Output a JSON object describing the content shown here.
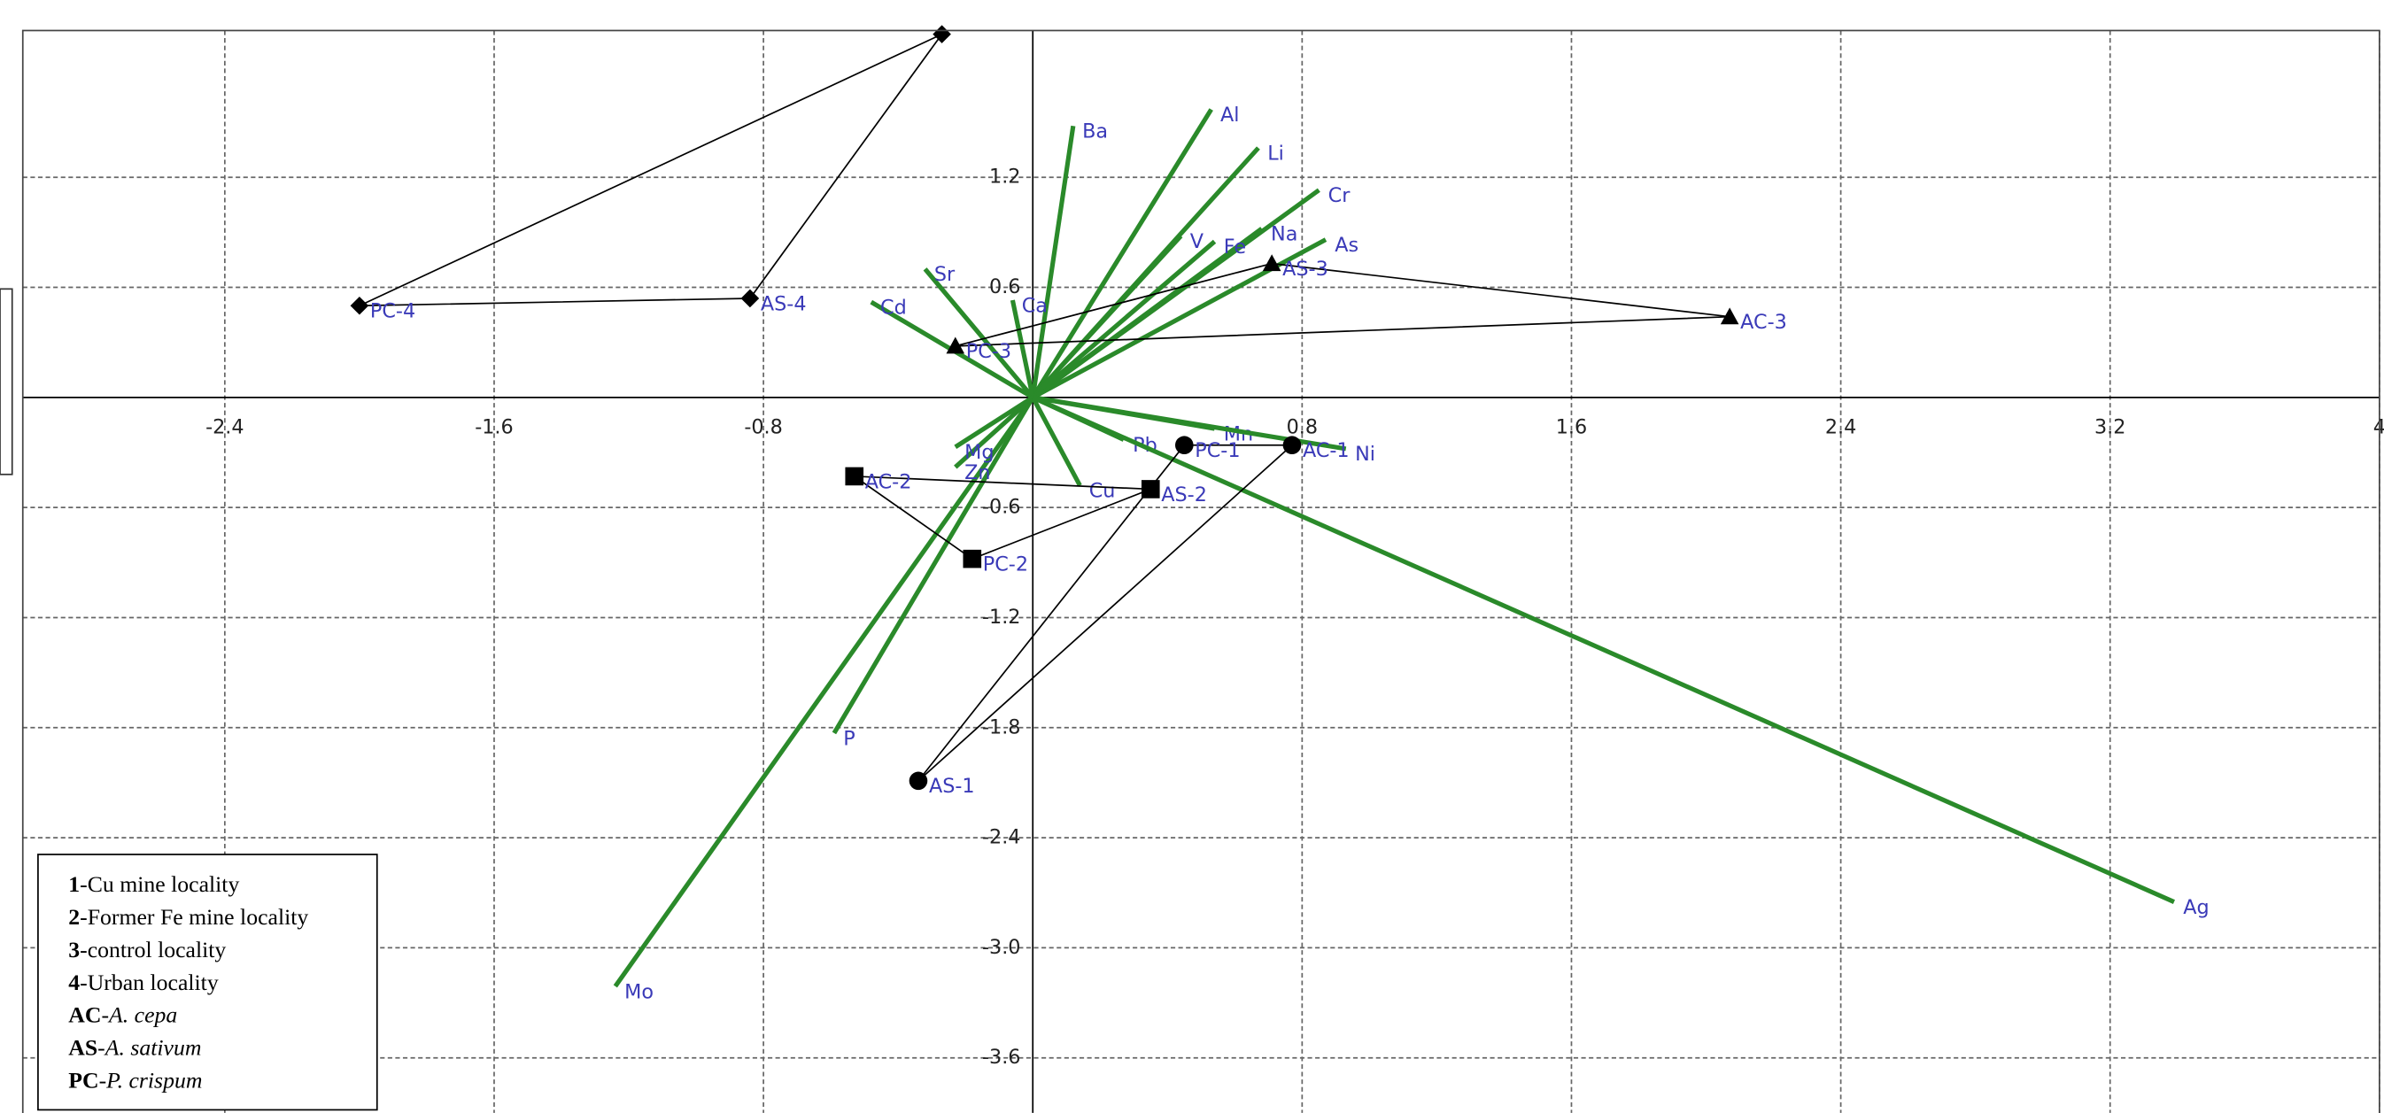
{
  "chart_data": {
    "type": "biplot",
    "xlim": [
      -3.0,
      4.0
    ],
    "ylim": [
      -3.9,
      2.0
    ],
    "xticks": [
      -2.4,
      -1.6,
      -0.8,
      0.8,
      1.6,
      2.4,
      3.2,
      4
    ],
    "yticks": [
      1.2,
      0.6,
      -0.6,
      -1.2,
      -1.8,
      -2.4,
      {
        "value": -3,
        "label": "-3.0"
      },
      -3.6
    ],
    "grid": true,
    "series": [
      {
        "name": "1",
        "marker": "circle",
        "color": "#000000",
        "labels": [
          "AC-1",
          "AS-1",
          "PC-1"
        ],
        "x": [
          0.77,
          -0.34,
          0.45
        ],
        "y": [
          -0.26,
          -2.09,
          -0.26
        ]
      },
      {
        "name": "2",
        "marker": "square",
        "color": "#000000",
        "labels": [
          "AC-2",
          "AS-2",
          "PC-2"
        ],
        "x": [
          -0.53,
          0.35,
          -0.18
        ],
        "y": [
          -0.43,
          -0.5,
          -0.88
        ]
      },
      {
        "name": "3",
        "marker": "triangle",
        "color": "#000000",
        "labels": [
          "AC-3",
          "AS-3",
          "PC-3"
        ],
        "x": [
          2.07,
          0.71,
          -0.23
        ],
        "y": [
          0.44,
          0.73,
          0.28
        ]
      },
      {
        "name": "4",
        "marker": "diamond",
        "color": "#000000",
        "labels": [
          null,
          "AS-4",
          "PC-4"
        ],
        "x": [
          -0.27,
          -0.84,
          -2.0
        ],
        "y": [
          1.98,
          0.54,
          0.5
        ]
      }
    ],
    "loadings": {
      "color": "#2a8a2a",
      "label_color": "#3a3ab8",
      "names": [
        "Ba",
        "Al",
        "Li",
        "Cr",
        "Na",
        "V",
        "Fe",
        "As",
        "Sr",
        "Cd",
        "Ca",
        "Mo",
        "P",
        "Zn",
        "Mg",
        "Cu",
        "Pb",
        "Mn",
        "Ni",
        "Ag"
      ],
      "x": [
        0.12,
        0.53,
        0.67,
        0.85,
        0.68,
        0.44,
        0.54,
        0.87,
        -0.32,
        -0.48,
        -0.06,
        -1.24,
        -0.59,
        -0.23,
        -0.23,
        0.14,
        0.27,
        0.54,
        0.93,
        3.39
      ],
      "y": [
        1.48,
        1.57,
        1.36,
        1.13,
        0.92,
        0.88,
        0.85,
        0.86,
        0.7,
        0.52,
        0.53,
        -3.21,
        -1.83,
        -0.38,
        -0.27,
        -0.48,
        -0.23,
        -0.17,
        -0.28,
        -2.75
      ]
    },
    "legend": [
      {
        "key": "1",
        "text": "-Cu mine locality"
      },
      {
        "key": "2",
        "text": "-Former Fe mine locality"
      },
      {
        "key": "3",
        "text": "-control locality"
      },
      {
        "key": "4",
        "text": "-Urban locality"
      },
      {
        "key": "AC",
        "text": "-",
        "italic": "A. cepa"
      },
      {
        "key": "AS",
        "text": "-",
        "italic": "A. sativum"
      },
      {
        "key": "PC",
        "text": "-",
        "italic": "P. crispum"
      }
    ]
  }
}
